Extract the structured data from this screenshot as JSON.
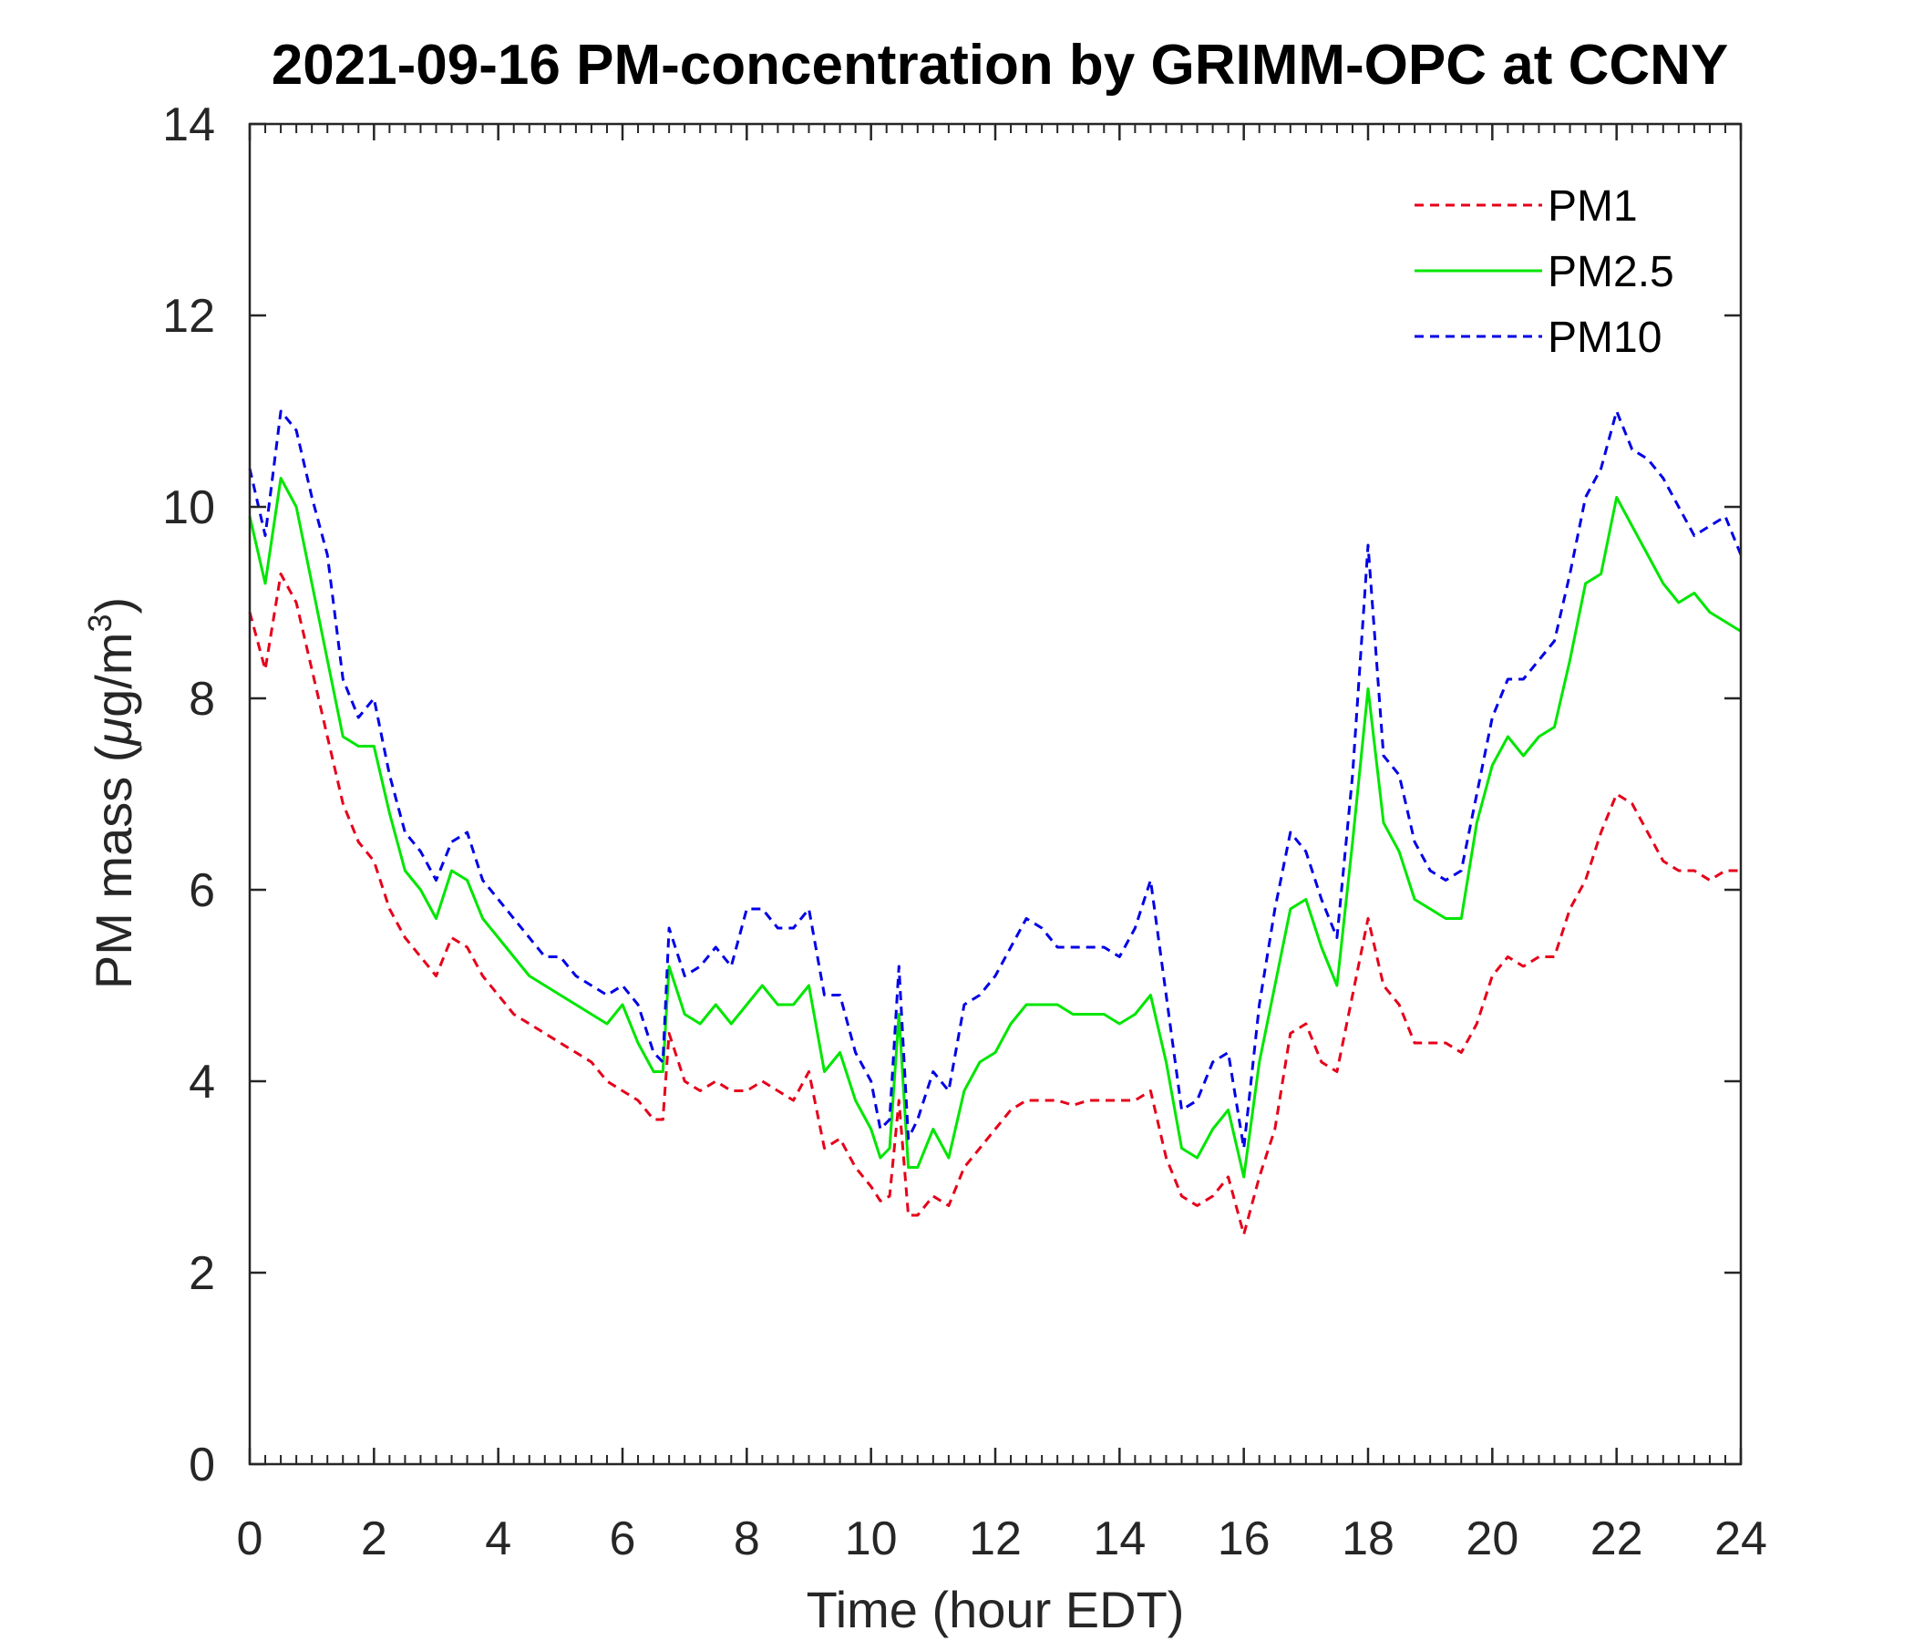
{
  "chart_data": {
    "type": "line",
    "title": "2021-09-16 PM-concentration by GRIMM-OPC at CCNY",
    "xlabel": "Time (hour EDT)",
    "ylabel_text": "PM mass (",
    "ylabel_mu": "μ",
    "ylabel_unit": "g/m",
    "ylabel_sup": "3",
    "ylabel_close": ")",
    "xlim": [
      0,
      24
    ],
    "ylim": [
      0,
      14
    ],
    "xticks": [
      0,
      2,
      4,
      6,
      8,
      10,
      12,
      14,
      16,
      18,
      20,
      22,
      24
    ],
    "yticks": [
      0,
      2,
      4,
      6,
      8,
      10,
      12,
      14
    ],
    "xtick_labels": [
      "0",
      "2",
      "4",
      "6",
      "8",
      "10",
      "12",
      "14",
      "16",
      "18",
      "20",
      "22",
      "24"
    ],
    "ytick_labels": [
      "0",
      "2",
      "4",
      "6",
      "8",
      "10",
      "12",
      "14"
    ],
    "legend": {
      "position": "top-right",
      "entries": [
        "PM1",
        "PM2.5",
        "PM10"
      ]
    },
    "x": [
      0,
      0.25,
      0.5,
      0.75,
      1,
      1.25,
      1.5,
      1.75,
      2,
      2.25,
      2.5,
      2.75,
      3,
      3.25,
      3.5,
      3.75,
      4,
      4.25,
      4.5,
      4.75,
      5,
      5.25,
      5.5,
      5.75,
      6,
      6.25,
      6.5,
      6.65,
      6.75,
      7,
      7.25,
      7.5,
      7.75,
      8,
      8.25,
      8.5,
      8.75,
      9,
      9.25,
      9.5,
      9.75,
      10,
      10.15,
      10.3,
      10.45,
      10.6,
      10.75,
      11,
      11.25,
      11.5,
      11.75,
      12,
      12.25,
      12.5,
      12.75,
      13,
      13.25,
      13.5,
      13.75,
      14,
      14.25,
      14.5,
      14.75,
      15,
      15.25,
      15.5,
      15.75,
      16,
      16.25,
      16.5,
      16.75,
      17,
      17.25,
      17.5,
      17.75,
      18,
      18.25,
      18.5,
      18.75,
      19,
      19.25,
      19.5,
      19.75,
      20,
      20.25,
      20.5,
      20.75,
      21,
      21.25,
      21.5,
      21.75,
      22,
      22.25,
      22.5,
      22.75,
      23,
      23.25,
      23.5,
      23.75,
      24
    ],
    "series": [
      {
        "name": "PM1",
        "color": "#e6001a",
        "style": "dashed",
        "values": [
          8.9,
          8.3,
          9.3,
          9.0,
          8.3,
          7.6,
          6.9,
          6.5,
          6.3,
          5.8,
          5.5,
          5.3,
          5.1,
          5.5,
          5.4,
          5.1,
          4.9,
          4.7,
          4.6,
          4.5,
          4.4,
          4.3,
          4.2,
          4.0,
          3.9,
          3.8,
          3.6,
          3.6,
          4.5,
          4.0,
          3.9,
          4.0,
          3.9,
          3.9,
          4.0,
          3.9,
          3.8,
          4.1,
          3.3,
          3.4,
          3.1,
          2.9,
          2.75,
          2.8,
          3.8,
          2.6,
          2.6,
          2.8,
          2.7,
          3.1,
          3.3,
          3.5,
          3.7,
          3.8,
          3.8,
          3.8,
          3.75,
          3.8,
          3.8,
          3.8,
          3.8,
          3.9,
          3.2,
          2.8,
          2.7,
          2.8,
          3.0,
          2.4,
          3.0,
          3.5,
          4.5,
          4.6,
          4.2,
          4.1,
          4.9,
          5.7,
          5.0,
          4.8,
          4.4,
          4.4,
          4.4,
          4.3,
          4.6,
          5.1,
          5.3,
          5.2,
          5.3,
          5.3,
          5.8,
          6.1,
          6.6,
          7.0,
          6.9,
          6.6,
          6.3,
          6.2,
          6.2,
          6.1,
          6.2,
          6.2
        ]
      },
      {
        "name": "PM2.5",
        "color": "#00e600",
        "style": "solid",
        "values": [
          9.9,
          9.2,
          10.3,
          10.0,
          9.2,
          8.4,
          7.6,
          7.5,
          7.5,
          6.8,
          6.2,
          6.0,
          5.7,
          6.2,
          6.1,
          5.7,
          5.5,
          5.3,
          5.1,
          5.0,
          4.9,
          4.8,
          4.7,
          4.6,
          4.8,
          4.4,
          4.1,
          4.1,
          5.2,
          4.7,
          4.6,
          4.8,
          4.6,
          4.8,
          5.0,
          4.8,
          4.8,
          5.0,
          4.1,
          4.3,
          3.8,
          3.5,
          3.2,
          3.3,
          4.7,
          3.1,
          3.1,
          3.5,
          3.2,
          3.9,
          4.2,
          4.3,
          4.6,
          4.8,
          4.8,
          4.8,
          4.7,
          4.7,
          4.7,
          4.6,
          4.7,
          4.9,
          4.2,
          3.3,
          3.2,
          3.5,
          3.7,
          3.0,
          4.2,
          5.0,
          5.8,
          5.9,
          5.4,
          5.0,
          6.5,
          8.1,
          6.7,
          6.4,
          5.9,
          5.8,
          5.7,
          5.7,
          6.7,
          7.3,
          7.6,
          7.4,
          7.6,
          7.7,
          8.4,
          9.2,
          9.3,
          10.1,
          9.8,
          9.5,
          9.2,
          9.0,
          9.1,
          8.9,
          8.8,
          8.7
        ]
      },
      {
        "name": "PM10",
        "color": "#0000e6",
        "style": "dashed",
        "values": [
          10.4,
          9.7,
          11.0,
          10.8,
          10.1,
          9.5,
          8.2,
          7.8,
          8.0,
          7.2,
          6.6,
          6.4,
          6.1,
          6.5,
          6.6,
          6.1,
          5.9,
          5.7,
          5.5,
          5.3,
          5.3,
          5.1,
          5.0,
          4.9,
          5.0,
          4.8,
          4.3,
          4.2,
          5.6,
          5.1,
          5.2,
          5.4,
          5.2,
          5.8,
          5.8,
          5.6,
          5.6,
          5.8,
          4.9,
          4.9,
          4.3,
          4.0,
          3.5,
          3.6,
          5.2,
          3.4,
          3.6,
          4.1,
          3.9,
          4.8,
          4.9,
          5.1,
          5.4,
          5.7,
          5.6,
          5.4,
          5.4,
          5.4,
          5.4,
          5.3,
          5.6,
          6.1,
          4.9,
          3.7,
          3.8,
          4.2,
          4.3,
          3.3,
          4.8,
          5.8,
          6.6,
          6.4,
          5.9,
          5.5,
          7.2,
          9.6,
          7.4,
          7.2,
          6.5,
          6.2,
          6.1,
          6.2,
          7.0,
          7.8,
          8.2,
          8.2,
          8.4,
          8.6,
          9.3,
          10.1,
          10.4,
          11.0,
          10.6,
          10.5,
          10.3,
          10.0,
          9.7,
          9.8,
          9.9,
          9.5
        ]
      }
    ]
  }
}
